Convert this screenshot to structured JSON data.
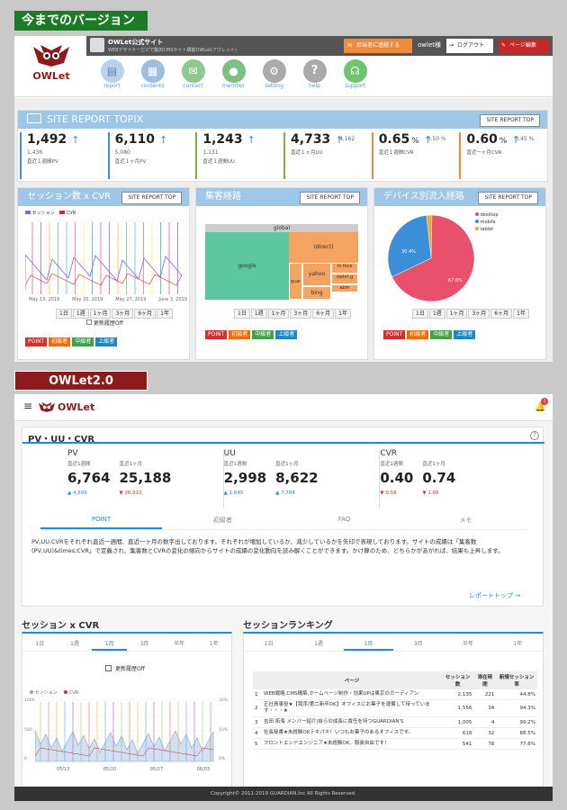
{
  "old": {
    "badge": "今までのバージョン",
    "topbar": {
      "site_name": "OWLet公式サイト",
      "site_sub": "WEBデザイナーだけで動的CMSサイト構築OWLet(アウレット)",
      "contact_btn": "担当者に連絡する",
      "user": "owlet様",
      "logout": "ログアウト",
      "page_edit": "ページ編集"
    },
    "logo": "OWLet",
    "nav": [
      "report",
      "contents",
      "contact",
      "member",
      "setting",
      "help",
      "support"
    ],
    "topix": {
      "title": "SITE REPORT TOPIX",
      "btn": "SITE REPORT TOP",
      "kpis": [
        {
          "value": "1,492",
          "prev": "1,436",
          "label": "直近１週間PV",
          "color": "#3b8ed8"
        },
        {
          "value": "6,110",
          "prev": "5,080",
          "label": "直近１ヶ月PV",
          "color": "#3b8ed8"
        },
        {
          "value": "1,243",
          "prev": "1,131",
          "label": "直近１週間UU",
          "color": "#7cb342"
        },
        {
          "value": "4,733",
          "prev": "4,162",
          "label": "直近１ヶ月UU",
          "color": "#7cb342"
        },
        {
          "value": "0.65",
          "unit": "%",
          "prev": "0.50 %",
          "label": "直近１週間CVR",
          "color": "#f08a3c"
        },
        {
          "value": "0.60",
          "unit": "%",
          "prev": "0.45 %",
          "label": "直近一ヶ月CVR",
          "color": "#f08a3c"
        }
      ]
    },
    "session": {
      "title": "セッション数 x CVR",
      "btn": "SITE REPORT TOP",
      "legend": [
        "セッション",
        "CVR"
      ],
      "xticks": [
        "May 13, 2019",
        "May 20, 2019",
        "May 27, 2019",
        "June 3, 2019"
      ],
      "ranges": [
        "1日",
        "1週",
        "1ヶ月",
        "3ヶ月",
        "6ヶ月",
        "1年"
      ],
      "history": "更新履歴Off",
      "levels": [
        "POINT",
        "初級者",
        "中級者",
        "上級者"
      ]
    },
    "traffic": {
      "title": "集客経路",
      "btn": "SITE REPORT TOP",
      "tree": [
        "global",
        "google",
        "(direct)",
        "yahoo",
        "guar",
        "m.face",
        "owlet.g",
        "abm",
        "bing"
      ],
      "ranges": [
        "1日",
        "1週",
        "1ヶ月",
        "3ヶ月",
        "6ヶ月",
        "1年"
      ],
      "levels": [
        "POINT",
        "初級者",
        "中級者",
        "上級者"
      ]
    },
    "device": {
      "title": "デバイス別流入経路",
      "btn": "SITE REPORT TOP",
      "legend": [
        "desktop",
        "mobile",
        "tablet"
      ],
      "slices": [
        {
          "name": "desktop",
          "value": 67.6,
          "color": "#e8506c"
        },
        {
          "name": "mobile",
          "value": 30.4,
          "color": "#3b8ed8"
        },
        {
          "name": "tablet",
          "value": 2.0,
          "color": "#f5a623"
        }
      ],
      "labels": [
        "30.4%",
        "67.6%"
      ],
      "ranges": [
        "1日",
        "1週",
        "1ヶ月",
        "3ヶ月",
        "6ヶ月",
        "1年"
      ],
      "levels": [
        "POINT",
        "初級者",
        "中級者",
        "上級者"
      ]
    }
  },
  "new": {
    "badge": "OWLet2.0",
    "logo": "OWLet",
    "notif_count": "1",
    "pv": {
      "title": "PV・UU・CVR",
      "help": "?",
      "groups": [
        {
          "name": "PV",
          "l1": "直近1週間",
          "l2": "直近1ヶ月",
          "v1": "6,764",
          "v2": "25,188",
          "d1": "4,599",
          "d2": "26,910",
          "up1": true,
          "up2": false
        },
        {
          "name": "UU",
          "l1": "直近1週間",
          "l2": "直近1ヶ月",
          "v1": "2,998",
          "v2": "8,622",
          "d1": "1,645",
          "d2": "7,784",
          "up1": true,
          "up2": true
        },
        {
          "name": "CVR",
          "l1": "直近1週間",
          "l2": "直近1ヶ月",
          "v1": "0.40",
          "v2": "0.74",
          "d1": "0.58",
          "d2": "1.06",
          "up1": false,
          "up2": false
        }
      ],
      "tabs": [
        "POINT",
        "初級者",
        "FAQ",
        "メモ"
      ],
      "text": "PV,UU,CVRをそれぞれ直近一週間、直近一ヶ月の数字出しております。それぞれが増加しているか、減少しているかを矢印で表現しております。サイトの成績は「集客数(PV,UU)&times;CVR」で定義され、集客数とCVRの変化の傾向からサイトの成績の変化動向を読み解くことができます。かけ算のため、どちらかがあがれば、結果も上昇します。",
      "link": "レポートトップ"
    },
    "session": {
      "title": "セッション x CVR",
      "tabs": [
        "1日",
        "1週",
        "1月",
        "3月",
        "半年",
        "1年"
      ],
      "active": "1月",
      "history": "更新履歴Off",
      "legend": [
        "セッション",
        "CVR"
      ],
      "yleft": [
        "1000",
        "500",
        "0"
      ],
      "yright": [
        "20%",
        "10%",
        "0%"
      ],
      "xticks": [
        "05/13",
        "05/20",
        "05/27",
        "06/03"
      ]
    },
    "ranking": {
      "title": "セッションランキング",
      "tabs": [
        "1日",
        "1週",
        "1月",
        "3月",
        "半年",
        "1年"
      ],
      "active": "1月",
      "headers": [
        "ページ",
        "セッション数",
        "滞在時間",
        "新規セッション率"
      ],
      "rows": [
        {
          "n": "1",
          "page": "WEB戦略,CMS構築,ホームページ制作・効果UPは東京のガーディアン",
          "s": "2,135",
          "t": "221",
          "r": "44.8%"
        },
        {
          "n": "2",
          "page": "正社員事役★【我序/第二新卒OK】オフィスにお菓子を運備して待っています・・・★",
          "s": "1,556",
          "t": "34",
          "r": "94.3%"
        },
        {
          "n": "3",
          "page": "吉田 拓海 メンバー紹介|自らの成長に責任を持つGUARDIAN'S",
          "s": "1,005",
          "t": "4",
          "r": "99.2%"
        },
        {
          "n": "4",
          "page": "社長秘書★未経験OKテキパキ！いつもお菓子のあるオフィスです。",
          "s": "618",
          "t": "32",
          "r": "88.5%"
        },
        {
          "n": "5",
          "page": "フロントエンドエンジニア★未経験OK、服装自由です！",
          "s": "541",
          "t": "78",
          "r": "77.6%"
        }
      ]
    },
    "footer": "Copyright© 2011-2019 GUARDIAN,Inc All Rights Reserved."
  }
}
